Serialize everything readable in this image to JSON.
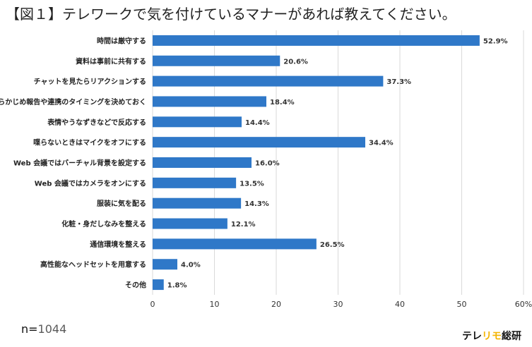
{
  "title": "【図１】テレワークで気を付けているマナーがあれば教えてください。",
  "sample": {
    "prefix": "n=",
    "value": "1044"
  },
  "brand": {
    "part1": "テレ",
    "part2": "リモ",
    "part3": "総研"
  },
  "colors": {
    "bar": "#2f78c8",
    "brand_highlight": "#f4b400"
  },
  "chart_data": {
    "type": "bar",
    "orientation": "horizontal",
    "categories": [
      "時間は厳守する",
      "資料は事前に共有する",
      "チャットを見たらリアクションする",
      "あらかじめ報告や連携のタイミングを決めておく",
      "表情やうなずきなどで反応する",
      "喋らないときはマイクをオフにする",
      "Web 会議ではバーチャル背景を設定する",
      "Web 会議ではカメラをオンにする",
      "服装に気を配る",
      "化粧・身だしなみを整える",
      "通信環境を整える",
      "高性能なヘッドセットを用意する",
      "その他"
    ],
    "values": [
      52.9,
      20.6,
      37.3,
      18.4,
      14.4,
      34.4,
      16.0,
      13.5,
      14.3,
      12.1,
      26.5,
      4.0,
      1.8
    ],
    "value_labels": [
      "52.9%",
      "20.6%",
      "37.3%",
      "18.4%",
      "14.4%",
      "34.4%",
      "16.0%",
      "13.5%",
      "14.3%",
      "12.1%",
      "26.5%",
      "4.0%",
      "1.8%"
    ],
    "xticks": [
      "0",
      "10",
      "20",
      "30",
      "40",
      "50",
      "60%"
    ],
    "xlim": [
      0,
      60
    ],
    "title": "【図１】テレワークで気を付けているマナーがあれば教えてください。"
  }
}
